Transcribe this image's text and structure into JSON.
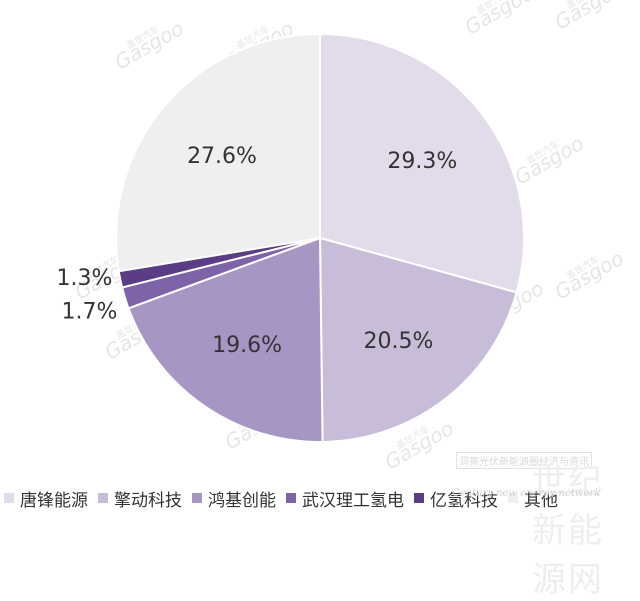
{
  "chart_data": {
    "type": "pie",
    "categories": [
      "唐锋能源",
      "擎动科技",
      "鸿基创能",
      "武汉理工氢电",
      "亿氢科技",
      "其他"
    ],
    "values": [
      29.3,
      20.5,
      19.6,
      1.7,
      1.3,
      27.6
    ],
    "data_labels": [
      "29.3%",
      "20.5%",
      "19.6%",
      "1.7%",
      "1.3%",
      "27.6%"
    ],
    "colors": [
      "#e2dcea",
      "#c8bdd9",
      "#a696c3",
      "#7f63a8",
      "#5a3d85",
      "#efefef"
    ],
    "legend_position": "bottom-left",
    "start": "top, clockwise"
  },
  "legend": {
    "items": [
      {
        "label": "唐锋能源",
        "color": "#e2dcea"
      },
      {
        "label": "擎动科技",
        "color": "#c8bdd9"
      },
      {
        "label": "鸿基创能",
        "color": "#a696c3"
      },
      {
        "label": "武汉理工氢电",
        "color": "#7f63a8"
      },
      {
        "label": "亿氢科技",
        "color": "#5a3d85"
      },
      {
        "label": "其他",
        "color": "#efefef"
      }
    ]
  },
  "watermarks": {
    "brand": "Gasgoo",
    "brand_cn": "盖世汽车",
    "site_cn_top": "洞察光伏新能源圈经济与资讯",
    "site_cn_big": "世纪新能源网",
    "site_en": "Century new energy network"
  }
}
